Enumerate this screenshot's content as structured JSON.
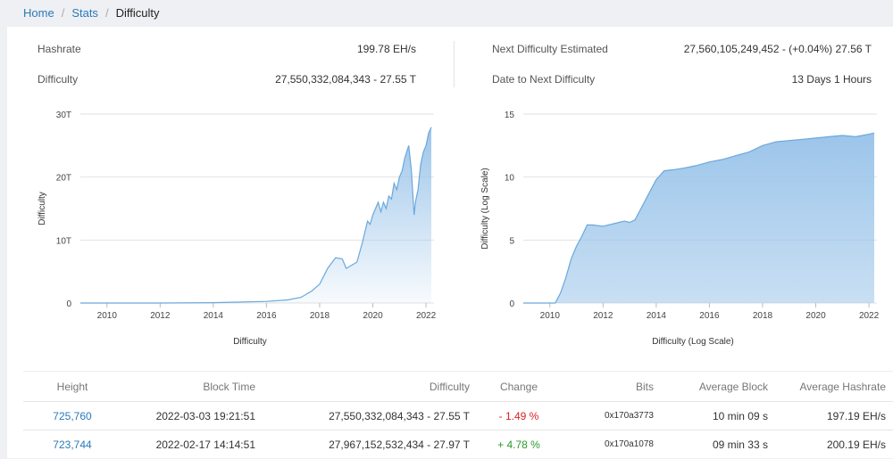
{
  "breadcrumb": [
    "Home",
    "Stats",
    "Difficulty"
  ],
  "stats": {
    "hashrate_label": "Hashrate",
    "hashrate_value": "199.78 EH/s",
    "difficulty_label": "Difficulty",
    "difficulty_value": "27,550,332,084,343 - 27.55 T",
    "next_label": "Next Difficulty Estimated",
    "next_value": "27,560,105,249,452 - (+0.04%) 27.56 T",
    "date_label": "Date to Next Difficulty",
    "date_value": "13 Days 1 Hours"
  },
  "chart_data": [
    {
      "type": "area",
      "xlabel": "Difficulty",
      "ylabel": "Difficulty",
      "ylim": [
        0,
        30
      ],
      "yticks": [
        "0",
        "10T",
        "20T",
        "30T"
      ],
      "xticks": [
        "2010",
        "2012",
        "2014",
        "2016",
        "2018",
        "2020",
        "2022"
      ],
      "x": [
        2009.0,
        2012.0,
        2014.0,
        2016.0,
        2016.8,
        2017.3,
        2017.7,
        2018.0,
        2018.3,
        2018.6,
        2018.85,
        2019.0,
        2019.2,
        2019.4,
        2019.6,
        2019.8,
        2019.9,
        2020.0,
        2020.2,
        2020.3,
        2020.4,
        2020.5,
        2020.6,
        2020.7,
        2020.8,
        2020.9,
        2021.0,
        2021.1,
        2021.2,
        2021.35,
        2021.45,
        2021.55,
        2021.6,
        2021.7,
        2021.8,
        2021.9,
        2022.0,
        2022.1,
        2022.2
      ],
      "y": [
        0.0,
        0.0,
        0.05,
        0.25,
        0.5,
        0.9,
        1.9,
        3.0,
        5.5,
        7.2,
        7.0,
        5.5,
        6.0,
        6.5,
        9.5,
        13.0,
        12.5,
        14.0,
        16.0,
        14.5,
        16.0,
        15.0,
        17.0,
        16.5,
        19.0,
        18.0,
        20.0,
        21.0,
        23.0,
        25.0,
        21.0,
        14.0,
        16.0,
        18.0,
        22.0,
        24.0,
        25.0,
        27.0,
        27.9
      ]
    },
    {
      "type": "area",
      "xlabel": "Difficulty (Log Scale)",
      "ylabel": "Difficulty (Log Scale)",
      "ylim": [
        0,
        15
      ],
      "yticks": [
        "0",
        "5",
        "10",
        "15"
      ],
      "xticks": [
        "2010",
        "2012",
        "2014",
        "2016",
        "2018",
        "2020",
        "2022"
      ],
      "x": [
        2009.0,
        2010.2,
        2010.4,
        2010.6,
        2010.8,
        2011.0,
        2011.2,
        2011.4,
        2011.6,
        2012.0,
        2012.4,
        2012.8,
        2013.0,
        2013.2,
        2013.5,
        2013.8,
        2014.0,
        2014.3,
        2014.7,
        2015.0,
        2015.5,
        2016.0,
        2016.5,
        2017.0,
        2017.5,
        2018.0,
        2018.5,
        2019.0,
        2019.5,
        2020.0,
        2020.5,
        2021.0,
        2021.5,
        2022.0,
        2022.2
      ],
      "y": [
        0.0,
        0.0,
        0.8,
        2.0,
        3.5,
        4.5,
        5.3,
        6.2,
        6.2,
        6.1,
        6.3,
        6.5,
        6.4,
        6.6,
        7.8,
        9.0,
        9.8,
        10.5,
        10.6,
        10.7,
        10.9,
        11.2,
        11.4,
        11.7,
        12.0,
        12.5,
        12.8,
        12.9,
        13.0,
        13.1,
        13.2,
        13.3,
        13.2,
        13.4,
        13.5
      ]
    }
  ],
  "table": {
    "headers": [
      "Height",
      "Block Time",
      "Difficulty",
      "Change",
      "Bits",
      "Average Block",
      "Average Hashrate"
    ],
    "rows": [
      [
        "725,760",
        "2022-03-03 19:21:51",
        "27,550,332,084,343 - 27.55 T",
        "- 1.49 %",
        "0x170a3773",
        "10 min 09 s",
        "197.19 EH/s"
      ],
      [
        "723,744",
        "2022-02-17 14:14:51",
        "27,967,152,532,434 - 27.97 T",
        "+ 4.78 %",
        "0x170a1078",
        "09 min 33 s",
        "200.19 EH/s"
      ]
    ]
  },
  "colors": {
    "link": "#2a7ab8",
    "area_fill": "#9cc5ea",
    "area_line": "#6aa8dc",
    "negative": "#dd2222",
    "positive": "#2a9a2a"
  }
}
